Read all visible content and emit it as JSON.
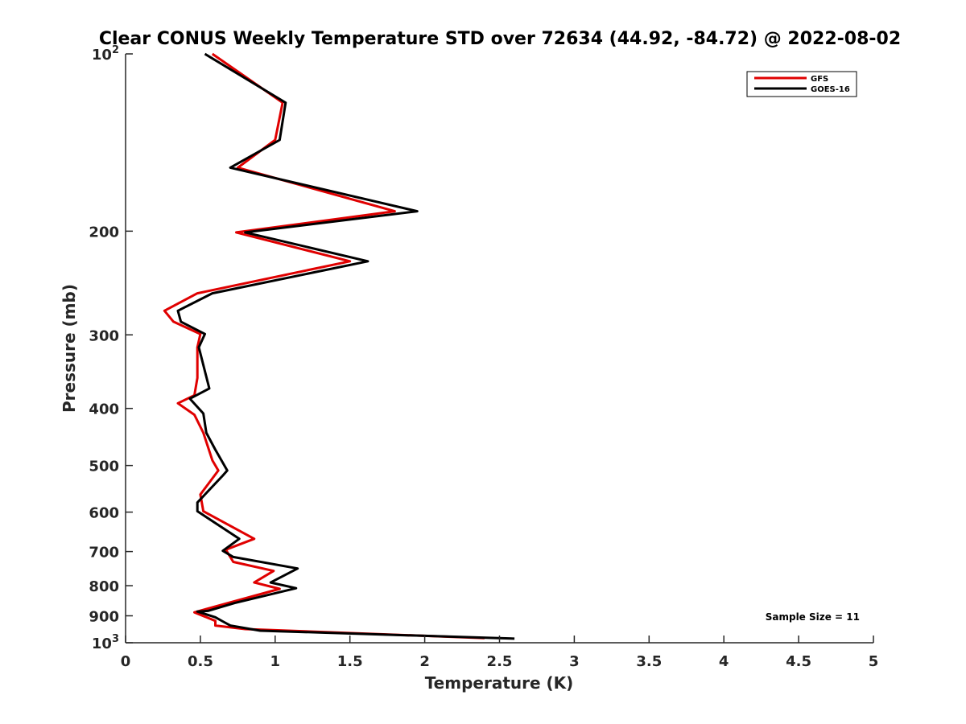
{
  "chart_data": {
    "type": "line",
    "title": "Clear CONUS Weekly Temperature STD over 72634 (44.92, -84.72) @ 2022-08-02",
    "xlabel": "Temperature (K)",
    "ylabel": "Pressure (mb)",
    "xlim": [
      0,
      5
    ],
    "ylim": [
      100,
      1000
    ],
    "y_scale": "log",
    "y_direction": "reversed",
    "x_ticks": [
      "0",
      "0.5",
      "1",
      "1.5",
      "2",
      "2.5",
      "3",
      "3.5",
      "4",
      "4.5",
      "5"
    ],
    "y_ticks": [
      {
        "value": 100,
        "base": "10",
        "exp": "2"
      },
      {
        "value": 200,
        "label": "200"
      },
      {
        "value": 300,
        "label": "300"
      },
      {
        "value": 400,
        "label": "400"
      },
      {
        "value": 500,
        "label": "500"
      },
      {
        "value": 600,
        "label": "600"
      },
      {
        "value": 700,
        "label": "700"
      },
      {
        "value": 800,
        "label": "800"
      },
      {
        "value": 900,
        "label": "900"
      },
      {
        "value": 1000,
        "base": "10",
        "exp": "3"
      }
    ],
    "legend_position": "top-right",
    "series": [
      {
        "name": "GFS",
        "color": "#e00000",
        "points": [
          [
            0.58,
            100
          ],
          [
            1.05,
            121
          ],
          [
            1.0,
            140
          ],
          [
            0.75,
            156
          ],
          [
            1.8,
            185
          ],
          [
            0.74,
            201
          ],
          [
            1.5,
            225
          ],
          [
            0.48,
            255
          ],
          [
            0.26,
            273
          ],
          [
            0.32,
            285
          ],
          [
            0.5,
            299
          ],
          [
            0.48,
            315
          ],
          [
            0.48,
            355
          ],
          [
            0.46,
            380
          ],
          [
            0.35,
            392
          ],
          [
            0.46,
            410
          ],
          [
            0.52,
            440
          ],
          [
            0.58,
            490
          ],
          [
            0.62,
            510
          ],
          [
            0.5,
            560
          ],
          [
            0.52,
            598
          ],
          [
            0.86,
            666
          ],
          [
            0.67,
            695
          ],
          [
            0.72,
            729
          ],
          [
            0.99,
            755
          ],
          [
            0.86,
            790
          ],
          [
            1.03,
            810
          ],
          [
            0.6,
            868
          ],
          [
            0.46,
            888
          ],
          [
            0.6,
            918
          ],
          [
            0.6,
            935
          ],
          [
            0.8,
            948
          ],
          [
            2.4,
            982
          ]
        ]
      },
      {
        "name": "GOES-16",
        "color": "#000000",
        "points": [
          [
            0.53,
            100
          ],
          [
            1.07,
            121
          ],
          [
            1.03,
            140
          ],
          [
            0.7,
            156
          ],
          [
            1.95,
            185
          ],
          [
            0.8,
            201
          ],
          [
            1.62,
            225
          ],
          [
            0.58,
            255
          ],
          [
            0.35,
            273
          ],
          [
            0.37,
            285
          ],
          [
            0.53,
            299
          ],
          [
            0.49,
            315
          ],
          [
            0.56,
            370
          ],
          [
            0.43,
            385
          ],
          [
            0.52,
            408
          ],
          [
            0.54,
            440
          ],
          [
            0.6,
            470
          ],
          [
            0.68,
            510
          ],
          [
            0.65,
            520
          ],
          [
            0.48,
            578
          ],
          [
            0.48,
            598
          ],
          [
            0.76,
            666
          ],
          [
            0.65,
            698
          ],
          [
            0.72,
            715
          ],
          [
            1.15,
            748
          ],
          [
            0.97,
            790
          ],
          [
            1.14,
            808
          ],
          [
            0.73,
            856
          ],
          [
            0.55,
            883
          ],
          [
            0.48,
            885
          ],
          [
            0.6,
            905
          ],
          [
            0.65,
            920
          ],
          [
            0.7,
            935
          ],
          [
            0.9,
            954
          ],
          [
            2.6,
            984
          ]
        ]
      }
    ],
    "annotation": "Sample Size = 11"
  }
}
